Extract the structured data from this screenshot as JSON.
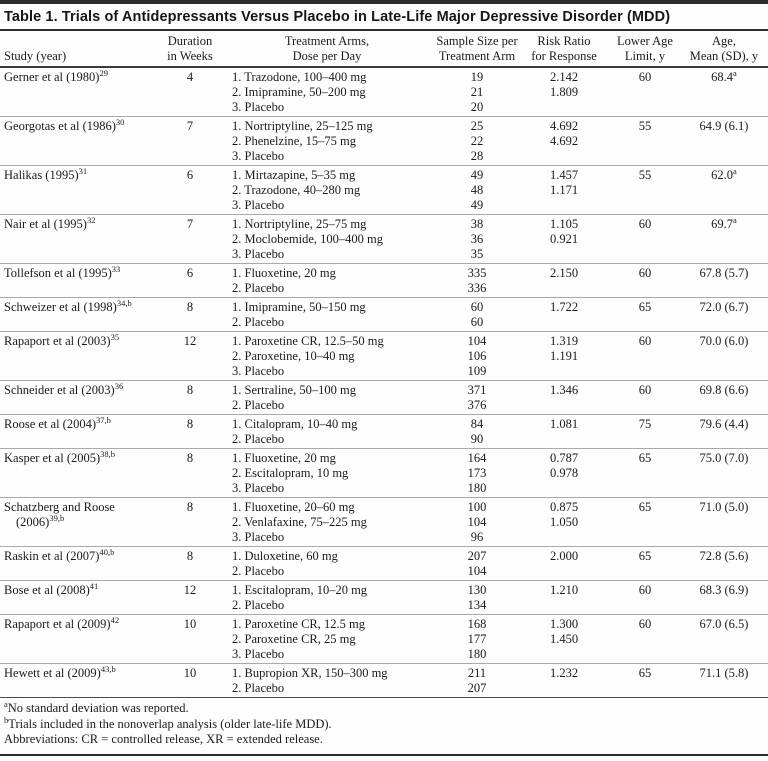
{
  "table": {
    "title": "Table 1. Trials of Antidepressants Versus Placebo in Late-Life Major Depressive Disorder (MDD)",
    "columns": [
      {
        "line1": "",
        "line2": "Study (year)"
      },
      {
        "line1": "Duration",
        "line2": "in Weeks"
      },
      {
        "line1": "Treatment Arms,",
        "line2": "Dose per Day"
      },
      {
        "line1": "Sample Size per",
        "line2": "Treatment Arm"
      },
      {
        "line1": "Risk Ratio",
        "line2": "for Response"
      },
      {
        "line1": "Lower Age",
        "line2": "Limit, y"
      },
      {
        "line1": "Age,",
        "line2": "Mean (SD), y"
      }
    ],
    "rows": [
      {
        "study": "Gerner et al (1980)",
        "study_sup": "29",
        "duration": "4",
        "arms": [
          "1. Trazodone, 100–400 mg",
          "2. Imipramine, 50–200 mg",
          "3. Placebo"
        ],
        "sample_sizes": [
          "19",
          "21",
          "20"
        ],
        "risk_ratios": [
          "2.142",
          "1.809"
        ],
        "lower_age": "60",
        "age_mean": "68.4",
        "age_sup": "a"
      },
      {
        "study": "Georgotas et al (1986)",
        "study_sup": "30",
        "duration": "7",
        "arms": [
          "1. Nortriptyline, 25–125 mg",
          "2. Phenelzine, 15–75 mg",
          "3. Placebo"
        ],
        "sample_sizes": [
          "25",
          "22",
          "28"
        ],
        "risk_ratios": [
          "4.692",
          "4.692"
        ],
        "lower_age": "55",
        "age_mean": "64.9 (6.1)",
        "age_sup": ""
      },
      {
        "study": "Halikas (1995)",
        "study_sup": "31",
        "duration": "6",
        "arms": [
          "1. Mirtazapine, 5–35 mg",
          "2. Trazodone, 40–280 mg",
          "3. Placebo"
        ],
        "sample_sizes": [
          "49",
          "48",
          "49"
        ],
        "risk_ratios": [
          "1.457",
          "1.171"
        ],
        "lower_age": "55",
        "age_mean": "62.0",
        "age_sup": "a"
      },
      {
        "study": "Nair et al (1995)",
        "study_sup": "32",
        "duration": "7",
        "arms": [
          "1. Nortriptyline, 25–75 mg",
          "2. Moclobemide, 100–400 mg",
          "3. Placebo"
        ],
        "sample_sizes": [
          "38",
          "36",
          "35"
        ],
        "risk_ratios": [
          "1.105",
          "0.921"
        ],
        "lower_age": "60",
        "age_mean": "69.7",
        "age_sup": "a"
      },
      {
        "study": "Tollefson et al (1995)",
        "study_sup": "33",
        "duration": "6",
        "arms": [
          "1. Fluoxetine, 20 mg",
          "2. Placebo"
        ],
        "sample_sizes": [
          "335",
          "336"
        ],
        "risk_ratios": [
          "2.150"
        ],
        "lower_age": "60",
        "age_mean": "67.8 (5.7)",
        "age_sup": ""
      },
      {
        "study": "Schweizer et al (1998)",
        "study_sup": "34,b",
        "duration": "8",
        "arms": [
          "1. Imipramine, 50–150 mg",
          "2. Placebo"
        ],
        "sample_sizes": [
          "60",
          "60"
        ],
        "risk_ratios": [
          "1.722"
        ],
        "lower_age": "65",
        "age_mean": "72.0 (6.7)",
        "age_sup": ""
      },
      {
        "study": "Rapaport et al (2003)",
        "study_sup": "35",
        "duration": "12",
        "arms": [
          "1. Paroxetine CR, 12.5–50 mg",
          "2. Paroxetine, 10–40 mg",
          "3. Placebo"
        ],
        "sample_sizes": [
          "104",
          "106",
          "109"
        ],
        "risk_ratios": [
          "1.319",
          "1.191"
        ],
        "lower_age": "60",
        "age_mean": "70.0 (6.0)",
        "age_sup": ""
      },
      {
        "study": "Schneider et al (2003)",
        "study_sup": "36",
        "duration": "8",
        "arms": [
          "1. Sertraline, 50–100 mg",
          "2. Placebo"
        ],
        "sample_sizes": [
          "371",
          "376"
        ],
        "risk_ratios": [
          "1.346"
        ],
        "lower_age": "60",
        "age_mean": "69.8 (6.6)",
        "age_sup": ""
      },
      {
        "study": "Roose et al (2004)",
        "study_sup": "37,b",
        "duration": "8",
        "arms": [
          "1. Citalopram, 10–40 mg",
          "2. Placebo"
        ],
        "sample_sizes": [
          "84",
          "90"
        ],
        "risk_ratios": [
          "1.081"
        ],
        "lower_age": "75",
        "age_mean": "79.6 (4.4)",
        "age_sup": ""
      },
      {
        "study": "Kasper et al (2005)",
        "study_sup": "38,b",
        "duration": "8",
        "arms": [
          "1. Fluoxetine, 20 mg",
          "2. Escitalopram, 10 mg",
          "3. Placebo"
        ],
        "sample_sizes": [
          "164",
          "173",
          "180"
        ],
        "risk_ratios": [
          "0.787",
          "0.978"
        ],
        "lower_age": "65",
        "age_mean": "75.0 (7.0)",
        "age_sup": ""
      },
      {
        "study": "Schatzberg and Roose (2006)",
        "study_sup": "39,b",
        "duration": "8",
        "arms": [
          "1. Fluoxetine, 20–60 mg",
          "2. Venlafaxine, 75–225 mg",
          "3. Placebo"
        ],
        "sample_sizes": [
          "100",
          "104",
          "96"
        ],
        "risk_ratios": [
          "0.875",
          "1.050"
        ],
        "lower_age": "65",
        "age_mean": "71.0 (5.0)",
        "age_sup": ""
      },
      {
        "study": "Raskin et al (2007)",
        "study_sup": "40,b",
        "duration": "8",
        "arms": [
          "1. Duloxetine, 60 mg",
          "2. Placebo"
        ],
        "sample_sizes": [
          "207",
          "104"
        ],
        "risk_ratios": [
          "2.000"
        ],
        "lower_age": "65",
        "age_mean": "72.8 (5.6)",
        "age_sup": ""
      },
      {
        "study": "Bose et al (2008)",
        "study_sup": "41",
        "duration": "12",
        "arms": [
          "1. Escitalopram, 10–20 mg",
          "2. Placebo"
        ],
        "sample_sizes": [
          "130",
          "134"
        ],
        "risk_ratios": [
          "1.210"
        ],
        "lower_age": "60",
        "age_mean": "68.3 (6.9)",
        "age_sup": ""
      },
      {
        "study": "Rapaport et al (2009)",
        "study_sup": "42",
        "duration": "10",
        "arms": [
          "1. Paroxetine CR, 12.5 mg",
          "2. Paroxetine CR, 25 mg",
          "3. Placebo"
        ],
        "sample_sizes": [
          "168",
          "177",
          "180"
        ],
        "risk_ratios": [
          "1.300",
          "1.450"
        ],
        "lower_age": "60",
        "age_mean": "67.0 (6.5)",
        "age_sup": ""
      },
      {
        "study": "Hewett et al (2009)",
        "study_sup": "43,b",
        "duration": "10",
        "arms": [
          "1. Bupropion XR, 150–300 mg",
          "2. Placebo"
        ],
        "sample_sizes": [
          "211",
          "207"
        ],
        "risk_ratios": [
          "1.232"
        ],
        "lower_age": "65",
        "age_mean": "71.1 (5.8)",
        "age_sup": ""
      }
    ],
    "footnotes": [
      {
        "sup": "a",
        "text": "No standard deviation was reported."
      },
      {
        "sup": "b",
        "text": "Trials included in the nonoverlap analysis (older late-life MDD)."
      },
      {
        "sup": "",
        "text": "Abbreviations: CR = controlled release, XR = extended release."
      }
    ]
  }
}
